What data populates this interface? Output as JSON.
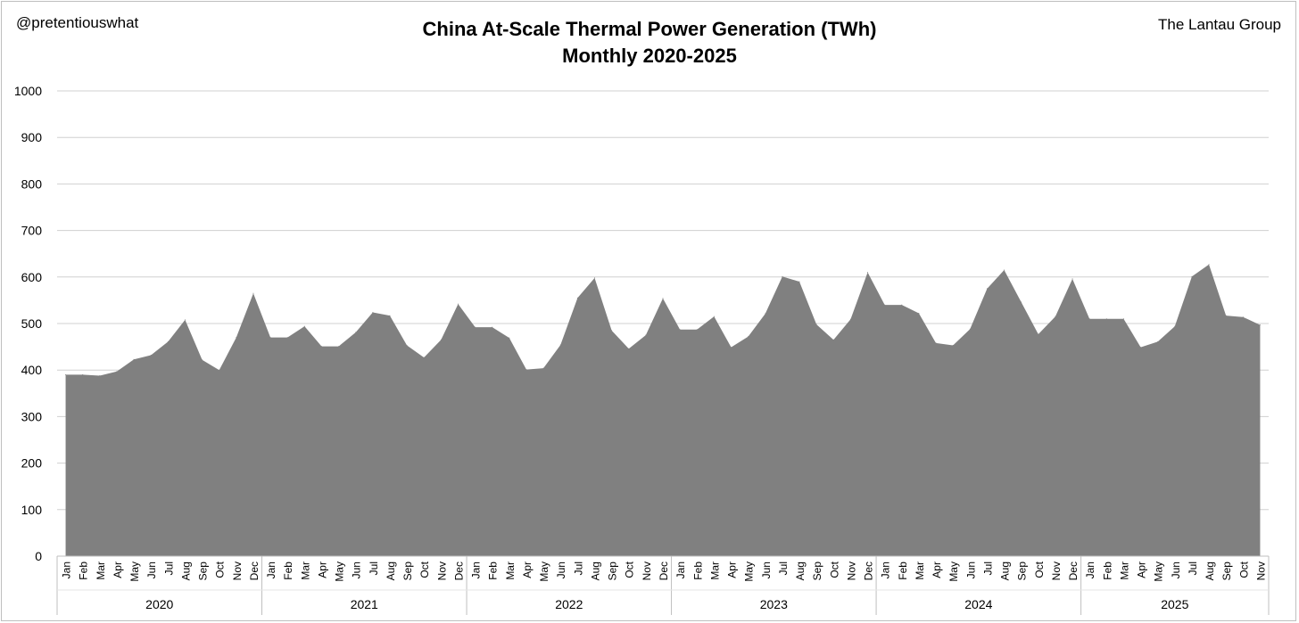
{
  "handle": "@pretentiouswhat",
  "source": "The Lantau Group",
  "chart_data": {
    "type": "area",
    "title": "China At-Scale Thermal Power Generation (TWh)",
    "subtitle": "Monthly 2020-2025",
    "xlabel": "",
    "ylabel": "",
    "ylim": [
      0,
      1000
    ],
    "yticks": [
      0,
      100,
      200,
      300,
      400,
      500,
      600,
      700,
      800,
      900,
      1000
    ],
    "grid": true,
    "legend": "none",
    "fill_color": "#808080",
    "years": [
      "2020",
      "2021",
      "2022",
      "2023",
      "2024",
      "2025"
    ],
    "months": [
      "Jan",
      "Feb",
      "Mar",
      "Apr",
      "May",
      "Jun",
      "Jul",
      "Aug",
      "Sep",
      "Oct",
      "Nov",
      "Dec"
    ],
    "months_2025": [
      "Jan",
      "Feb",
      "Mar",
      "Apr",
      "May",
      "Jun",
      "Jul",
      "Aug",
      "Sep",
      "Oct",
      "Nov"
    ],
    "values": [
      390,
      390,
      388,
      397,
      423,
      432,
      461,
      508,
      422,
      400,
      470,
      565,
      470,
      470,
      494,
      451,
      451,
      481,
      524,
      517,
      453,
      427,
      465,
      542,
      492,
      492,
      469,
      401,
      404,
      454,
      555,
      598,
      485,
      446,
      475,
      554,
      487,
      487,
      515,
      449,
      472,
      521,
      601,
      590,
      498,
      465,
      509,
      610,
      540,
      540,
      522,
      458,
      453,
      488,
      575,
      615,
      546,
      477,
      515,
      596,
      510,
      510,
      510,
      449,
      461,
      494,
      601,
      627,
      517,
      514,
      497
    ]
  }
}
